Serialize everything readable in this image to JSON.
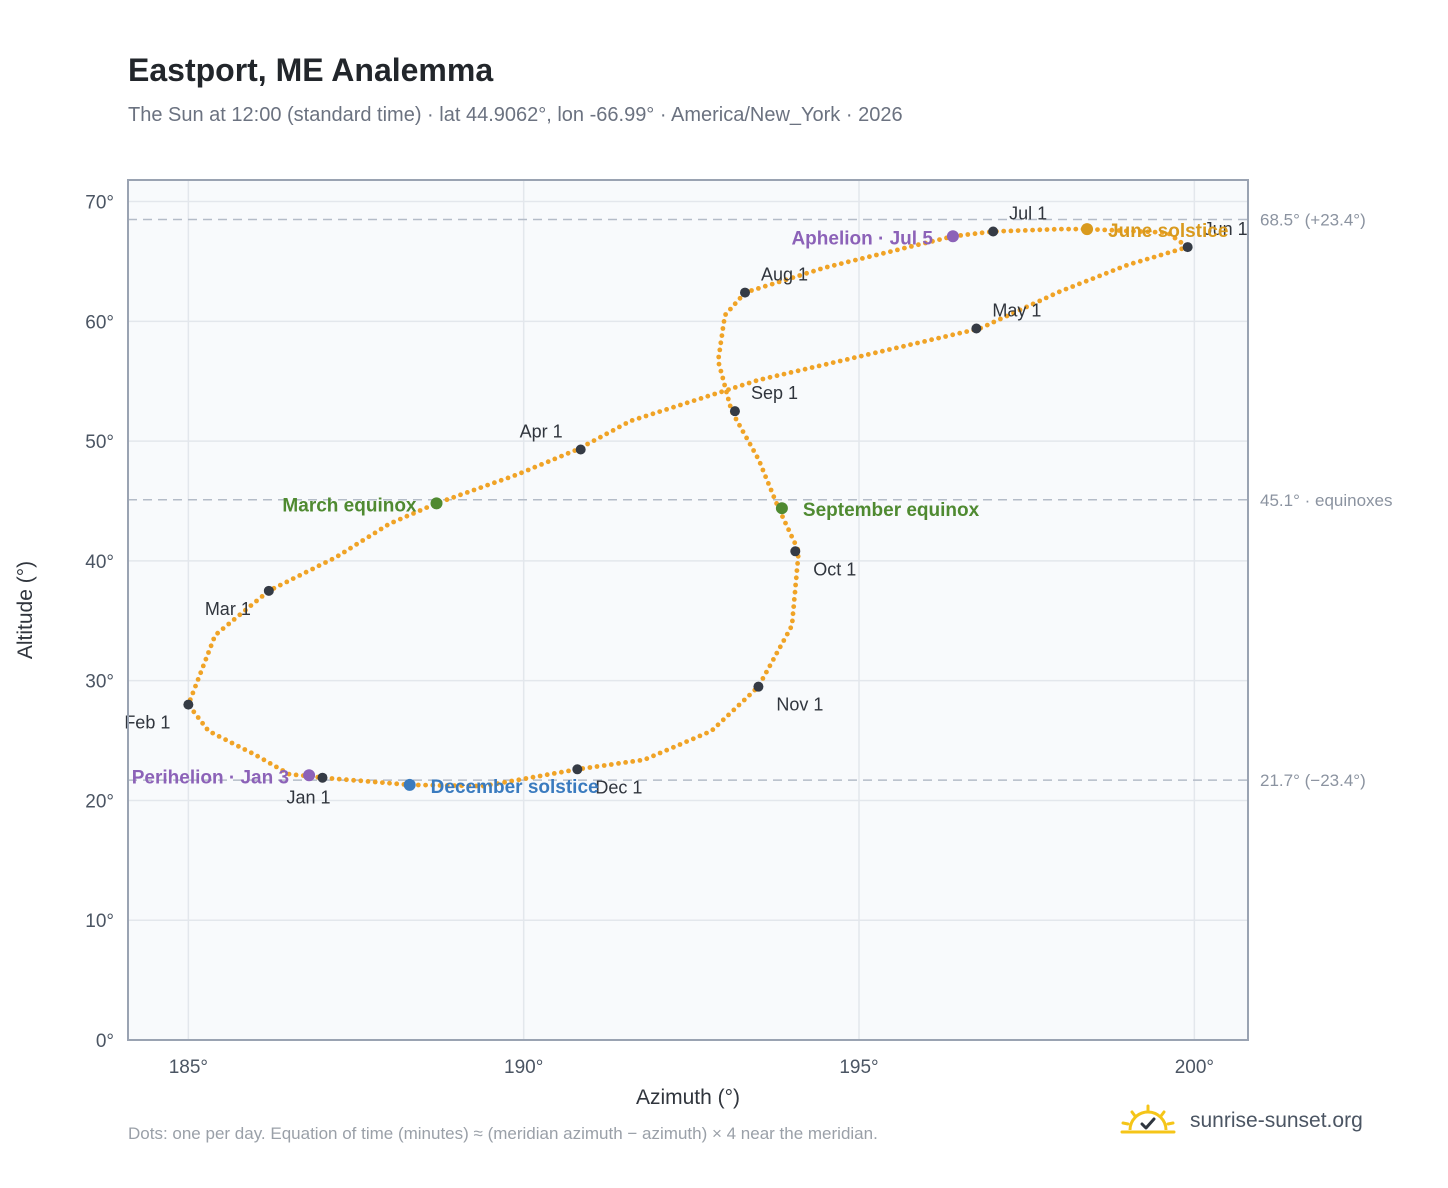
{
  "header": {
    "title": "Eastport, ME Analemma",
    "subtitle": "The Sun at 12:00 (standard time) · lat 44.9062°, lon -66.99° · America/New_York · 2026"
  },
  "footer": {
    "note": "Dots: one per day. Equation of time (minutes) ≈ (meridian azimuth − azimuth) × 4 near the meridian.",
    "brand": "sunrise-sunset.org"
  },
  "colors": {
    "path": "#f0a326",
    "month": "#353b45",
    "equinox": "#4f8a31",
    "june": "#d99a1e",
    "december": "#3a7bbf",
    "apsis": "#8c62b8",
    "grid": "#e3e7ec",
    "frame": "#9aa3b2",
    "plot_bg": "#f8fafc",
    "refline": "#b4bcc8"
  },
  "chart_data": {
    "type": "scatter",
    "xlabel": "Azimuth (°)",
    "ylabel": "Altitude (°)",
    "xlim": [
      184.1,
      200.8
    ],
    "ylim": [
      0,
      71.8
    ],
    "xticks": [
      185,
      190,
      195,
      200
    ],
    "yticks": [
      0,
      10,
      20,
      30,
      40,
      50,
      60,
      70
    ],
    "grid": true,
    "ref_lines": [
      {
        "y": 68.5,
        "label": "68.5° (+23.4°)"
      },
      {
        "y": 45.1,
        "label": "45.1° · equinoxes"
      },
      {
        "y": 21.7,
        "label": "21.7° (−23.4°)"
      }
    ],
    "series": [
      {
        "points": [
          [
            186.5,
            22.2
          ],
          [
            187.0,
            21.9
          ],
          [
            188.3,
            21.3
          ],
          [
            189.4,
            21.2
          ],
          [
            190.8,
            22.6
          ],
          [
            191.8,
            23.4
          ],
          [
            192.8,
            25.8
          ],
          [
            193.5,
            29.5
          ],
          [
            194.0,
            34.6
          ],
          [
            194.1,
            40.8
          ],
          [
            193.8,
            44.4
          ],
          [
            193.5,
            48.5
          ],
          [
            193.1,
            52.5
          ],
          [
            192.9,
            56.7
          ],
          [
            193.0,
            60.5
          ],
          [
            193.3,
            62.4
          ],
          [
            194.5,
            64.5
          ],
          [
            196.4,
            67.1
          ],
          [
            197.0,
            67.5
          ],
          [
            198.0,
            67.7
          ],
          [
            198.4,
            67.7
          ],
          [
            199.6,
            67.4
          ],
          [
            199.9,
            66.2
          ],
          [
            199.0,
            64.7
          ],
          [
            198.0,
            62.5
          ],
          [
            196.8,
            59.4
          ],
          [
            193.5,
            55.1
          ],
          [
            191.6,
            51.7
          ],
          [
            190.8,
            49.3
          ],
          [
            189.9,
            47.2
          ],
          [
            188.7,
            44.8
          ],
          [
            188.0,
            43.1
          ],
          [
            187.2,
            40.3
          ],
          [
            186.2,
            37.5
          ],
          [
            185.4,
            33.8
          ],
          [
            185.0,
            28.0
          ],
          [
            185.3,
            25.8
          ],
          [
            186.0,
            23.8
          ],
          [
            186.5,
            22.2
          ]
        ]
      }
    ],
    "month_markers": [
      {
        "label": "Jan 1",
        "az": 187.0,
        "alt": 21.9,
        "pos": "below"
      },
      {
        "label": "Feb 1",
        "az": 185.0,
        "alt": 28.0,
        "pos": "below-left"
      },
      {
        "label": "Mar 1",
        "az": 186.2,
        "alt": 37.5,
        "pos": "below-left"
      },
      {
        "label": "Apr 1",
        "az": 190.85,
        "alt": 49.3,
        "pos": "above-left"
      },
      {
        "label": "May 1",
        "az": 196.75,
        "alt": 59.4,
        "pos": "above-right"
      },
      {
        "label": "Jun 1",
        "az": 199.9,
        "alt": 66.2,
        "pos": "above-right"
      },
      {
        "label": "Jul 1",
        "az": 197.0,
        "alt": 67.5,
        "pos": "above-right"
      },
      {
        "label": "Aug 1",
        "az": 193.3,
        "alt": 62.4,
        "pos": "above-right"
      },
      {
        "label": "Sep 1",
        "az": 193.15,
        "alt": 52.5,
        "pos": "above-right"
      },
      {
        "label": "Oct 1",
        "az": 194.05,
        "alt": 40.8,
        "pos": "below-right"
      },
      {
        "label": "Nov 1",
        "az": 193.5,
        "alt": 29.5,
        "pos": "below-right"
      },
      {
        "label": "Dec 1",
        "az": 190.8,
        "alt": 22.6,
        "pos": "below-right"
      }
    ],
    "events": [
      {
        "label": "March equinox",
        "az": 188.7,
        "alt": 44.8,
        "kind": "equinox",
        "side": "left"
      },
      {
        "label": "September equinox",
        "az": 193.85,
        "alt": 44.4,
        "kind": "equinox",
        "side": "right"
      },
      {
        "label": "June solstice",
        "az": 198.4,
        "alt": 67.7,
        "kind": "june",
        "side": "right"
      },
      {
        "label": "December solstice",
        "az": 188.3,
        "alt": 21.3,
        "kind": "december",
        "side": "right"
      },
      {
        "label": "Aphelion · Jul 5",
        "az": 196.4,
        "alt": 67.1,
        "kind": "apsis",
        "side": "left"
      },
      {
        "label": "Perihelion · Jan 3",
        "az": 186.8,
        "alt": 22.1,
        "kind": "apsis",
        "side": "left"
      }
    ]
  }
}
